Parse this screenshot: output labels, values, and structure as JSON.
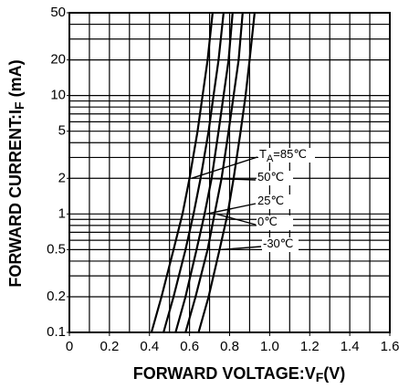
{
  "chart_data": {
    "type": "line",
    "x_label": {
      "text": "FORWARD VOLTAGE:V",
      "sub": "F",
      "tail": "(V)"
    },
    "y_label": {
      "text": "FORWARD CURRENT:I",
      "sub": "F",
      "tail": " (mA)"
    },
    "annotation_prefix": {
      "text": "T",
      "sub": "A",
      "tail": "="
    },
    "xlim": [
      0,
      1.6
    ],
    "ylim": [
      0.1,
      50
    ],
    "log_y": true,
    "grid": true,
    "color": "#000000",
    "xticks": [
      0,
      0.2,
      0.4,
      0.6,
      0.8,
      {
        "value": 1,
        "label": "1.0"
      },
      1.2,
      1.4,
      1.6
    ],
    "yticks": [
      0.1,
      0.2,
      0.5,
      1,
      2,
      5,
      10,
      20,
      50
    ],
    "xgrid": [
      0,
      0.1,
      0.2,
      0.3,
      0.4,
      0.5,
      0.6,
      0.7,
      0.8,
      0.9,
      1,
      1.1,
      1.2,
      1.3,
      1.4,
      1.5,
      1.6
    ],
    "ygrid": [
      0.1,
      0.2,
      0.3,
      0.4,
      0.5,
      0.6,
      0.7,
      0.8,
      0.9,
      1,
      2,
      3,
      4,
      5,
      6,
      7,
      8,
      9,
      10,
      20,
      30,
      40,
      50
    ],
    "series": [
      {
        "name": "85℃",
        "x": [
          0.41,
          0.46,
          0.52,
          0.565,
          0.6,
          0.64,
          0.665,
          0.69,
          0.715
        ],
        "values": [
          0.1,
          0.2,
          0.5,
          1,
          2,
          5,
          10,
          20,
          50
        ]
      },
      {
        "name": "50℃",
        "x": [
          0.47,
          0.52,
          0.58,
          0.62,
          0.655,
          0.695,
          0.72,
          0.745,
          0.77
        ],
        "values": [
          0.1,
          0.2,
          0.5,
          1,
          2,
          5,
          10,
          20,
          50
        ]
      },
      {
        "name": "25℃",
        "x": [
          0.53,
          0.58,
          0.635,
          0.675,
          0.71,
          0.745,
          0.77,
          0.795,
          0.815
        ],
        "values": [
          0.1,
          0.2,
          0.5,
          1,
          2,
          5,
          10,
          20,
          50
        ]
      },
      {
        "name": "0℃",
        "x": [
          0.58,
          0.63,
          0.69,
          0.725,
          0.76,
          0.795,
          0.82,
          0.845,
          0.865
        ],
        "values": [
          0.1,
          0.2,
          0.5,
          1,
          2,
          5,
          10,
          20,
          50
        ]
      },
      {
        "name": "-30℃",
        "x": [
          0.645,
          0.695,
          0.75,
          0.79,
          0.82,
          0.855,
          0.88,
          0.9,
          0.925
        ],
        "values": [
          0.1,
          0.2,
          0.5,
          1,
          2,
          5,
          10,
          20,
          50
        ]
      }
    ]
  }
}
